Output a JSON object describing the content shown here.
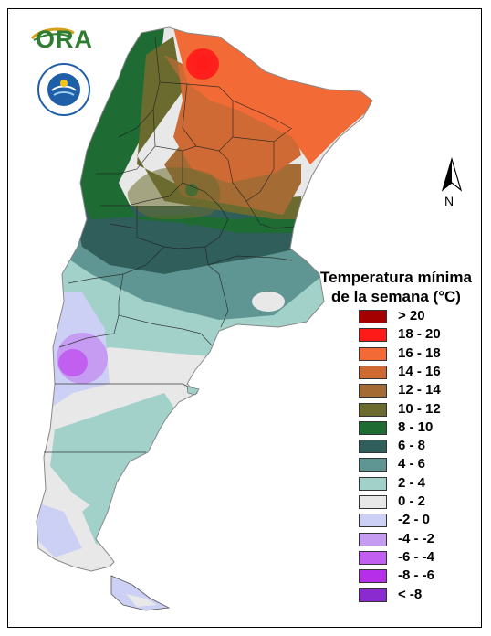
{
  "logos": {
    "ora_text": "ORA",
    "smn_ring_text": "SERVICIO METEOROLÓGICO NACIONAL ARGENTINA"
  },
  "north": {
    "label": "N"
  },
  "legend": {
    "title_line1": "Temperatura mínima",
    "title_line2": "de la semana (°C)",
    "items": [
      {
        "label": "> 20",
        "color": "#a50000"
      },
      {
        "label": "18 - 20",
        "color": "#ff1a1a"
      },
      {
        "label": "16 - 18",
        "color": "#f26a35"
      },
      {
        "label": "14 - 16",
        "color": "#cf6a35"
      },
      {
        "label": "12 - 14",
        "color": "#a56b35"
      },
      {
        "label": "10 - 12",
        "color": "#6b6b2f"
      },
      {
        "label": "8 - 10",
        "color": "#1e6b34"
      },
      {
        "label": "6 - 8",
        "color": "#2f5e5b"
      },
      {
        "label": "4 - 6",
        "color": "#5f9694"
      },
      {
        "label": "2 - 4",
        "color": "#a1d1c9"
      },
      {
        "label": "0 - 2",
        "color": "#e8e8e8"
      },
      {
        "label": "-2 - 0",
        "color": "#cdd0f5"
      },
      {
        "label": "-4 - -2",
        "color": "#c69bf2"
      },
      {
        "label": "-6 - -4",
        "color": "#c15ff0"
      },
      {
        "label": "-8 - -6",
        "color": "#b52ee8"
      },
      {
        "label": "< -8",
        "color": "#8a2bd0"
      }
    ]
  }
}
